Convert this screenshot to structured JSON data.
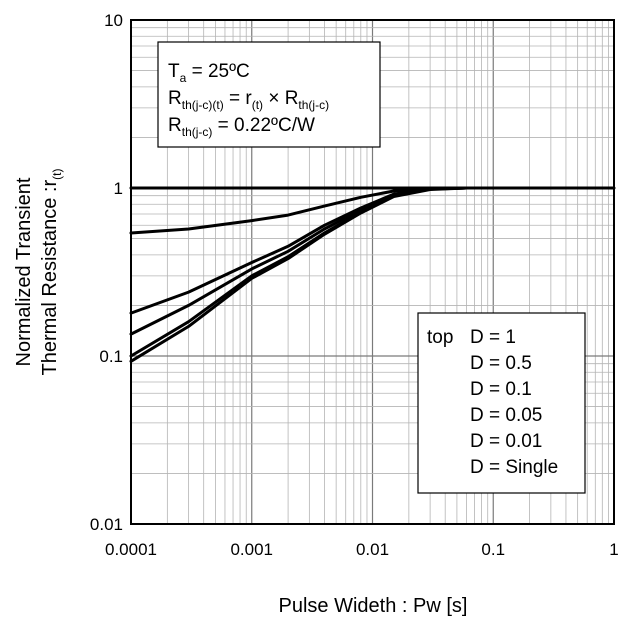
{
  "chart_data": {
    "type": "line",
    "xlabel": "Pulse Wideth : Pw [s]",
    "ylabel_line1": "Normalized Transient",
    "ylabel_line2": "Thermal Resistance :r",
    "ylabel_sub": "(t)",
    "x_scale": "log",
    "y_scale": "log",
    "xlim": [
      0.0001,
      1
    ],
    "ylim": [
      0.01,
      10
    ],
    "x_ticks": [
      {
        "value": 0.0001,
        "label": "0.0001"
      },
      {
        "value": 0.001,
        "label": "0.001"
      },
      {
        "value": 0.01,
        "label": "0.01"
      },
      {
        "value": 0.1,
        "label": "0.1"
      },
      {
        "value": 1,
        "label": "1"
      }
    ],
    "y_ticks": [
      {
        "value": 0.01,
        "label": "0.01"
      },
      {
        "value": 0.1,
        "label": "0.1"
      },
      {
        "value": 1,
        "label": "1"
      },
      {
        "value": 10,
        "label": "10"
      }
    ],
    "grid": true,
    "conditions": {
      "ta_main": "T",
      "ta_sub": "a",
      "ta_rest": " = 25ºC",
      "rth_main": "R",
      "rth_sub": "th(j-c)(t)",
      "rth_mid": " = r",
      "rth_sub2": "(t)",
      "rth_times": " × R",
      "rth_sub3": "th(j-c)",
      "rjc_main": "R",
      "rjc_sub": "th(j-c)",
      "rjc_rest": " = 0.22ºC/W"
    },
    "legend": {
      "position": "bottom-right",
      "prefix": "top",
      "entries": [
        "D = 1",
        "D = 0.5",
        "D = 0.1",
        "D = 0.05",
        "D = 0.01",
        "D = Single"
      ]
    },
    "series": [
      {
        "x": [
          0.0001,
          1
        ],
        "y": [
          1,
          1
        ]
      },
      {
        "x": [
          0.0001,
          0.0003,
          0.001,
          0.002,
          0.004,
          0.008,
          0.015,
          0.03,
          0.06,
          0.1
        ],
        "y": [
          0.54,
          0.57,
          0.64,
          0.69,
          0.78,
          0.88,
          0.96,
          0.995,
          1.0,
          1.0
        ]
      },
      {
        "x": [
          0.0001,
          0.0003,
          0.001,
          0.002,
          0.004,
          0.008,
          0.015,
          0.03,
          0.06,
          0.1
        ],
        "y": [
          0.18,
          0.24,
          0.36,
          0.45,
          0.6,
          0.76,
          0.92,
          0.99,
          1.0,
          1.0
        ]
      },
      {
        "x": [
          0.0001,
          0.0003,
          0.001,
          0.002,
          0.004,
          0.008,
          0.015,
          0.03,
          0.06,
          0.1
        ],
        "y": [
          0.135,
          0.2,
          0.33,
          0.42,
          0.57,
          0.74,
          0.91,
          0.99,
          1.0,
          1.0
        ]
      },
      {
        "x": [
          0.0001,
          0.0003,
          0.001,
          0.002,
          0.004,
          0.008,
          0.015,
          0.03,
          0.06,
          0.1
        ],
        "y": [
          0.1,
          0.16,
          0.3,
          0.39,
          0.54,
          0.72,
          0.9,
          0.985,
          1.0,
          1.0
        ]
      },
      {
        "x": [
          0.0001,
          0.0003,
          0.001,
          0.002,
          0.004,
          0.008,
          0.015,
          0.03,
          0.06,
          0.1
        ],
        "y": [
          0.093,
          0.15,
          0.29,
          0.38,
          0.53,
          0.71,
          0.89,
          0.98,
          1.0,
          1.0
        ]
      }
    ]
  }
}
